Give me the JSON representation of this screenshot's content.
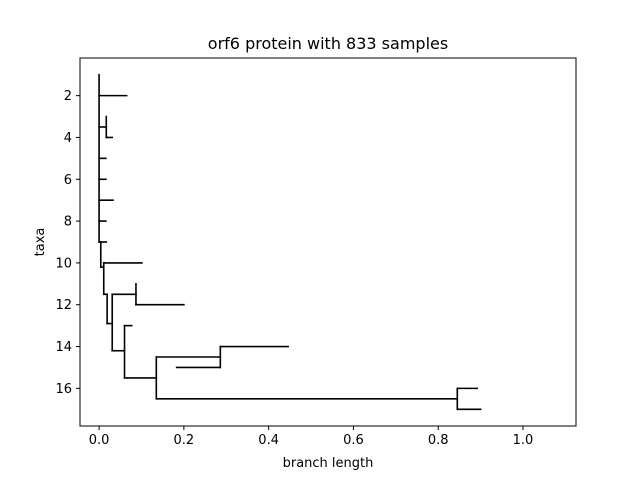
{
  "chart_data": {
    "type": "dendrogram",
    "title": "orf6 protein with 833 samples",
    "xlabel": "branch length",
    "ylabel": "taxa",
    "xlim": [
      -0.045,
      1.125
    ],
    "ylim": [
      17.8,
      0.2
    ],
    "x_ticks": [
      0.0,
      0.2,
      0.4,
      0.6,
      0.8,
      1.0
    ],
    "x_tick_labels": [
      "0.0",
      "0.2",
      "0.4",
      "0.6",
      "0.8",
      "1.0"
    ],
    "y_ticks": [
      2,
      4,
      6,
      8,
      10,
      12,
      14,
      16
    ],
    "y_tick_labels": [
      "2",
      "4",
      "6",
      "8",
      "10",
      "12",
      "14",
      "16"
    ],
    "line_color": "#000000",
    "segments": [
      [
        0.0,
        1.0,
        0.0,
        9.0
      ],
      [
        0.0,
        2.0,
        0.065,
        2.0
      ],
      [
        0.0,
        3.5,
        0.017,
        3.5
      ],
      [
        0.017,
        3.0,
        0.017,
        4.0
      ],
      [
        0.017,
        4.0,
        0.031,
        4.0
      ],
      [
        0.0,
        5.0,
        0.016,
        5.0
      ],
      [
        0.0,
        6.0,
        0.016,
        6.0
      ],
      [
        0.0,
        7.0,
        0.033,
        7.0
      ],
      [
        0.0,
        8.0,
        0.016,
        8.0
      ],
      [
        0.0,
        9.0,
        0.004,
        9.0
      ],
      [
        0.004,
        9.0,
        0.004,
        10.2
      ],
      [
        0.004,
        9.0,
        0.017,
        9.0
      ],
      [
        0.004,
        10.2,
        0.011,
        10.2
      ],
      [
        0.011,
        10.0,
        0.011,
        11.5
      ],
      [
        0.011,
        10.0,
        0.101,
        10.0
      ],
      [
        0.011,
        11.5,
        0.019,
        11.5
      ],
      [
        0.019,
        11.5,
        0.019,
        12.9
      ],
      [
        0.019,
        12.9,
        0.031,
        12.9
      ],
      [
        0.031,
        11.5,
        0.031,
        14.2
      ],
      [
        0.031,
        11.5,
        0.087,
        11.5
      ],
      [
        0.087,
        11.0,
        0.087,
        12.0
      ],
      [
        0.087,
        12.0,
        0.2,
        12.0
      ],
      [
        0.031,
        14.2,
        0.06,
        14.2
      ],
      [
        0.06,
        13.0,
        0.06,
        15.5
      ],
      [
        0.06,
        13.0,
        0.077,
        13.0
      ],
      [
        0.06,
        15.5,
        0.135,
        15.5
      ],
      [
        0.135,
        14.5,
        0.135,
        16.5
      ],
      [
        0.135,
        14.5,
        0.286,
        14.5
      ],
      [
        0.286,
        14.0,
        0.286,
        15.0
      ],
      [
        0.286,
        14.0,
        0.446,
        14.0
      ],
      [
        0.183,
        15.0,
        0.286,
        15.0
      ],
      [
        0.135,
        16.5,
        0.845,
        16.5
      ],
      [
        0.845,
        16.0,
        0.845,
        17.0
      ],
      [
        0.845,
        16.0,
        0.892,
        16.0
      ],
      [
        0.845,
        17.0,
        0.9,
        17.0
      ]
    ]
  }
}
